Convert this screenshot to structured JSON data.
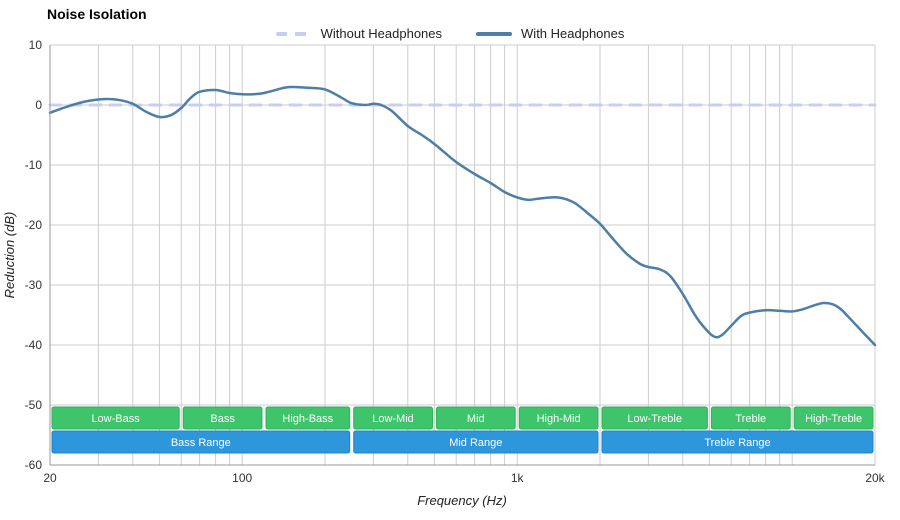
{
  "title": "Noise Isolation",
  "legend": {
    "items": [
      {
        "label": "Without Headphones",
        "color": "#c8cdf4",
        "dash": true
      },
      {
        "label": "With Headphones",
        "color": "#4d7ea8",
        "dash": false
      }
    ]
  },
  "chart_data": {
    "type": "line",
    "title": "Noise Isolation",
    "xlabel": "Frequency (Hz)",
    "ylabel": "Reduction (dB)",
    "x_scale": "log",
    "xlim": [
      20,
      20000
    ],
    "ylim": [
      -60,
      10
    ],
    "grid": true,
    "legend_position": "top",
    "grid_color": "#cccccc",
    "axis_color": "#999999",
    "x_ticks": [
      {
        "v": 20,
        "label": "20"
      },
      {
        "v": 100,
        "label": "100"
      },
      {
        "v": 1000,
        "label": "1k"
      },
      {
        "v": 20000,
        "label": "20k"
      }
    ],
    "y_ticks": [
      {
        "v": 10,
        "label": "10"
      },
      {
        "v": 0,
        "label": "0"
      },
      {
        "v": -10,
        "label": "-10"
      },
      {
        "v": -20,
        "label": "-20"
      },
      {
        "v": -30,
        "label": "-30"
      },
      {
        "v": -40,
        "label": "-40"
      },
      {
        "v": -50,
        "label": "-50"
      },
      {
        "v": -60,
        "label": "-60"
      }
    ],
    "series": [
      {
        "name": "Without Headphones",
        "style": "dashed",
        "color": "#c8cdf4",
        "x": [
          20,
          20000
        ],
        "y": [
          0,
          0
        ]
      },
      {
        "name": "With Headphones",
        "style": "solid",
        "color": "#4d7ea8",
        "x": [
          20,
          23,
          27,
          32,
          36,
          40,
          45,
          50,
          55,
          60,
          65,
          70,
          80,
          90,
          100,
          110,
          120,
          140,
          150,
          170,
          200,
          230,
          250,
          280,
          300,
          320,
          350,
          400,
          450,
          500,
          600,
          700,
          800,
          900,
          1000,
          1100,
          1200,
          1400,
          1600,
          1800,
          2000,
          2200,
          2500,
          2800,
          3000,
          3300,
          3600,
          4000,
          4500,
          5000,
          5300,
          5600,
          6000,
          6500,
          7000,
          8000,
          9000,
          10000,
          11000,
          12000,
          13000,
          14000,
          15000,
          16000,
          18000,
          20000
        ],
        "y": [
          -1.3,
          -0.3,
          0.6,
          1.0,
          0.8,
          0.2,
          -1.2,
          -2.0,
          -1.7,
          -0.5,
          1.2,
          2.2,
          2.5,
          2.0,
          1.8,
          1.8,
          2.0,
          2.8,
          3.0,
          2.9,
          2.6,
          1.2,
          0.3,
          0.0,
          0.2,
          0.0,
          -1.0,
          -3.5,
          -5.0,
          -6.5,
          -9.5,
          -11.5,
          -13.0,
          -14.5,
          -15.4,
          -15.8,
          -15.6,
          -15.4,
          -16.2,
          -18.0,
          -19.8,
          -22.0,
          -24.8,
          -26.5,
          -27.0,
          -27.4,
          -28.5,
          -31.5,
          -35.5,
          -38.0,
          -38.7,
          -38.2,
          -36.8,
          -35.2,
          -34.6,
          -34.2,
          -34.3,
          -34.4,
          -34.0,
          -33.4,
          -33.0,
          -33.2,
          -34.0,
          -35.3,
          -37.8,
          -40.0
        ]
      }
    ],
    "frequency_bands": {
      "sub_color": "#3ec46a",
      "sub_border": "#2fb258",
      "range_color": "#2e96db",
      "range_border": "#1e84c8",
      "sub": [
        {
          "label": "Low-Bass",
          "from": 20,
          "to": 60
        },
        {
          "label": "Bass",
          "from": 60,
          "to": 120
        },
        {
          "label": "High-Bass",
          "from": 120,
          "to": 250
        },
        {
          "label": "Low-Mid",
          "from": 250,
          "to": 500
        },
        {
          "label": "Mid",
          "from": 500,
          "to": 1000
        },
        {
          "label": "High-Mid",
          "from": 1000,
          "to": 2000
        },
        {
          "label": "Low-Treble",
          "from": 2000,
          "to": 5000
        },
        {
          "label": "Treble",
          "from": 5000,
          "to": 10000
        },
        {
          "label": "High-Treble",
          "from": 10000,
          "to": 20000
        }
      ],
      "ranges": [
        {
          "label": "Bass Range",
          "from": 20,
          "to": 250
        },
        {
          "label": "Mid Range",
          "from": 250,
          "to": 2000
        },
        {
          "label": "Treble Range",
          "from": 2000,
          "to": 20000
        }
      ]
    }
  }
}
